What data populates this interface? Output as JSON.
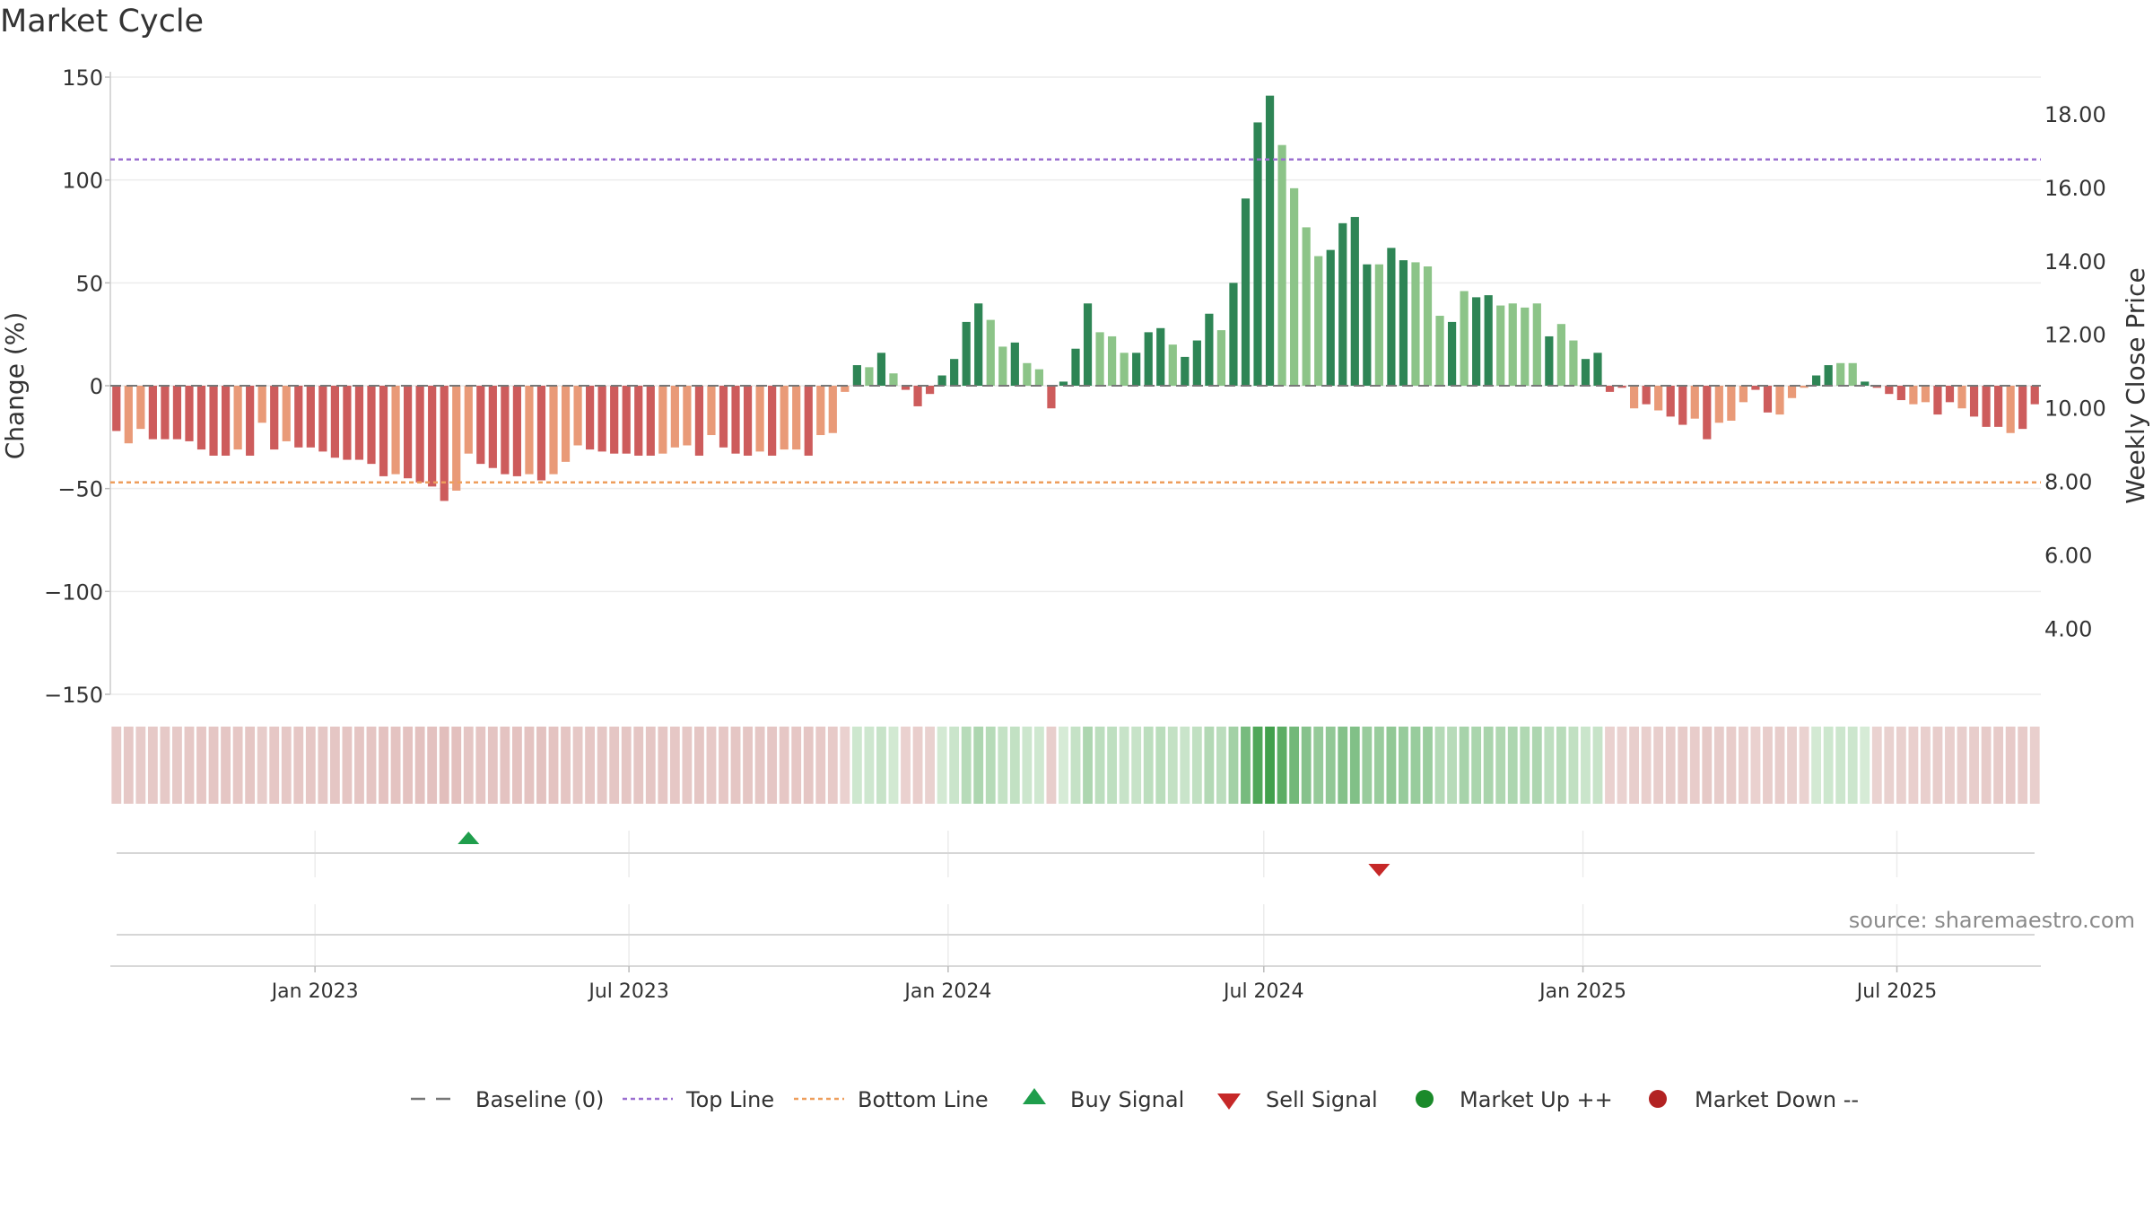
{
  "title": "Market Cycle",
  "source": "source: sharemaestro.com",
  "colors": {
    "up_dark": "#2e8555",
    "up_light": "#8cc488",
    "down_dark": "#cd5c5c",
    "down_light": "#e99a78",
    "top_line": "#9b6fd0",
    "bottom_line": "#ee9e5c",
    "buy": "#1f9e4c",
    "sell": "#c62828",
    "market_up": "#1a8a2a",
    "market_down": "#b22222",
    "baseline": "#777777"
  },
  "chart_data": {
    "type": "bar",
    "title": "Market Cycle",
    "ylabel": "Change (%)",
    "y2label": "Weekly Close Price",
    "ylim": [
      -150,
      150
    ],
    "y2lim": [
      2.2,
      19.0
    ],
    "yticks": [
      "150",
      "100",
      "50",
      "0",
      "−50",
      "−100",
      "−150"
    ],
    "yticks_values": [
      150,
      100,
      50,
      0,
      -50,
      -100,
      -150
    ],
    "y2ticks": [
      "18.00",
      "16.00",
      "14.00",
      "12.00",
      "10.00",
      "8.00",
      "6.00",
      "4.00"
    ],
    "y2ticks_values": [
      18,
      16,
      14,
      12,
      10,
      8,
      6,
      4
    ],
    "x_start": "2022-09-05",
    "x_end": "2025-09-22",
    "xticks": [
      {
        "label": "Jan 2023",
        "date": "2023-01-01"
      },
      {
        "label": "Jul 2023",
        "date": "2023-07-01"
      },
      {
        "label": "Jan 2024",
        "date": "2024-01-01"
      },
      {
        "label": "Jul 2024",
        "date": "2024-07-01"
      },
      {
        "label": "Jan 2025",
        "date": "2025-01-01"
      },
      {
        "label": "Jul 2025",
        "date": "2025-07-01"
      }
    ],
    "top_line": 110,
    "bottom_line": -47,
    "grid": true,
    "values": [
      -22,
      -28,
      -21,
      -26,
      -26,
      -26,
      -27,
      -31,
      -34,
      -34,
      -31,
      -34,
      -18,
      -31,
      -27,
      -30,
      -30,
      -32,
      -35,
      -36,
      -36,
      -38,
      -44,
      -43,
      -45,
      -47,
      -49,
      -56,
      -51,
      -33,
      -38,
      -40,
      -43,
      -44,
      -43,
      -46,
      -43,
      -37,
      -29,
      -31,
      -32,
      -33,
      -33,
      -34,
      -34,
      -33,
      -30,
      -29,
      -34,
      -24,
      -30,
      -33,
      -34,
      -32,
      -34,
      -31,
      -31,
      -34,
      -24,
      -23,
      -3,
      10,
      9,
      16,
      6,
      -2,
      -10,
      -4,
      5,
      13,
      31,
      40,
      32,
      19,
      21,
      11,
      8,
      -11,
      2,
      18,
      40,
      26,
      24,
      16,
      16,
      26,
      28,
      20,
      14,
      22,
      35,
      27,
      50,
      91,
      128,
      141,
      117,
      96,
      77,
      63,
      66,
      79,
      82,
      59,
      59,
      67,
      61,
      60,
      58,
      34,
      31,
      46,
      43,
      44,
      39,
      40,
      38,
      40,
      24,
      30,
      22,
      13,
      16,
      -3,
      -1,
      -11,
      -9,
      -12,
      -15,
      -19,
      -16,
      -26,
      -18,
      -17,
      -8,
      -2,
      -13,
      -14,
      -6,
      -1,
      5,
      10,
      11,
      11,
      2,
      -1,
      -4,
      -7,
      -9,
      -8,
      -14,
      -8,
      -11,
      -15,
      -20,
      -20,
      -23,
      -21,
      -9
    ],
    "shades": [
      0,
      1,
      1,
      0,
      0,
      0,
      0,
      0,
      0,
      0,
      1,
      0,
      1,
      0,
      1,
      0,
      0,
      0,
      0,
      0,
      0,
      0,
      0,
      1,
      0,
      0,
      0,
      0,
      1,
      1,
      0,
      0,
      0,
      0,
      1,
      0,
      1,
      1,
      1,
      0,
      0,
      0,
      0,
      0,
      0,
      1,
      1,
      1,
      0,
      1,
      0,
      0,
      0,
      1,
      0,
      1,
      1,
      0,
      1,
      1,
      1,
      0,
      1,
      0,
      1,
      0,
      0,
      0,
      0,
      0,
      0,
      0,
      1,
      1,
      0,
      1,
      1,
      0,
      0,
      0,
      0,
      1,
      1,
      1,
      0,
      0,
      0,
      1,
      0,
      0,
      0,
      1,
      0,
      0,
      0,
      0,
      1,
      1,
      1,
      1,
      0,
      0,
      0,
      0,
      1,
      0,
      0,
      1,
      1,
      1,
      0,
      1,
      0,
      0,
      1,
      1,
      1,
      1,
      0,
      1,
      1,
      0,
      0,
      0,
      0,
      1,
      0,
      1,
      0,
      0,
      1,
      0,
      1,
      1,
      1,
      0,
      0,
      1,
      1,
      1,
      0,
      0,
      1,
      1,
      0,
      0,
      0,
      0,
      1,
      1,
      0,
      0,
      1,
      0,
      0,
      0,
      1
    ],
    "signals": [
      {
        "type": "buy",
        "index": 29
      },
      {
        "type": "sell",
        "index": 104
      }
    ],
    "legend": [
      {
        "label": "Baseline (0)",
        "marker": "dash"
      },
      {
        "label": "Top Line",
        "marker": "dotted-purple"
      },
      {
        "label": "Bottom Line",
        "marker": "dotted-orange"
      },
      {
        "label": "Buy Signal",
        "marker": "triangle-up"
      },
      {
        "label": "Sell Signal",
        "marker": "triangle-down"
      },
      {
        "label": "Market Up ++",
        "marker": "circle-green"
      },
      {
        "label": "Market Down --",
        "marker": "circle-red"
      }
    ],
    "legend_position": "bottom"
  }
}
